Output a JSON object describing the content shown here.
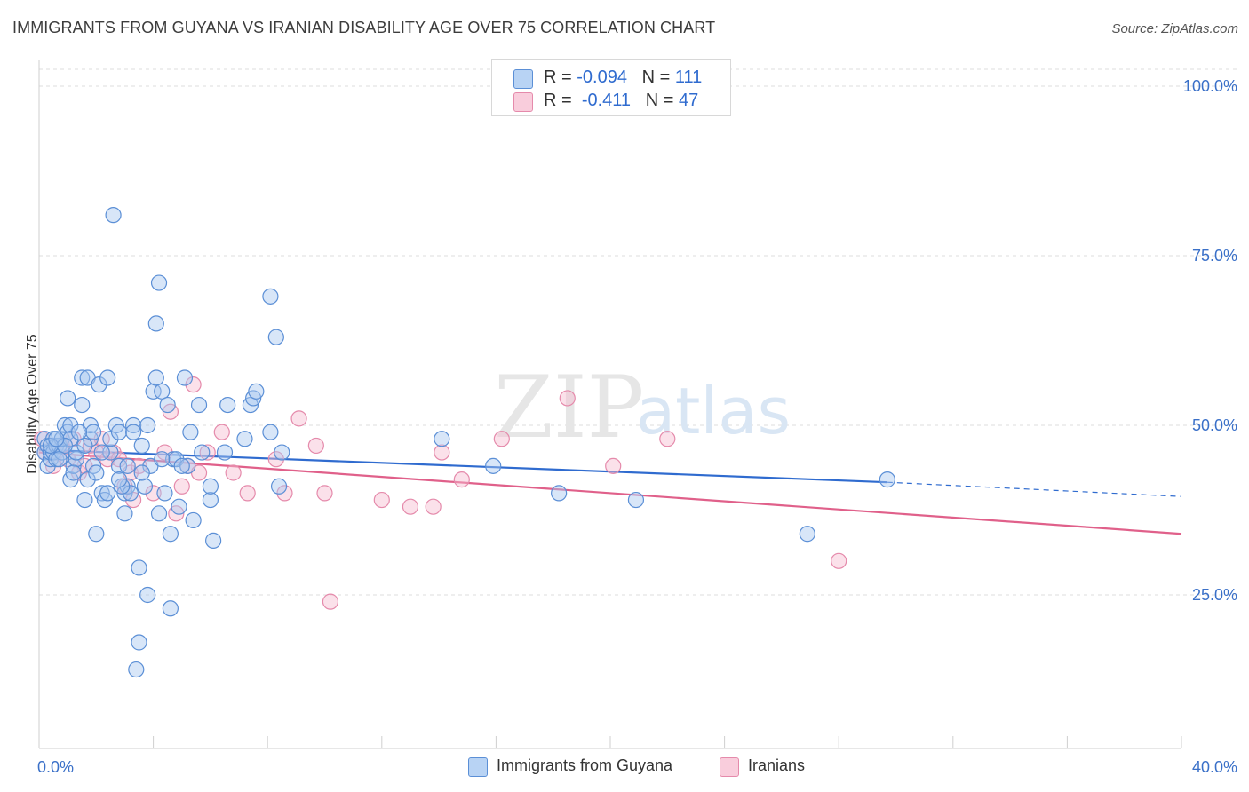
{
  "title": "IMMIGRANTS FROM GUYANA VS IRANIAN DISABILITY AGE OVER 75 CORRELATION CHART",
  "source": "Source: ZipAtlas.com",
  "watermark": {
    "zip": "ZIP",
    "atlas": "atlas"
  },
  "stats": {
    "guyana": {
      "r_label": "R =",
      "r_value": "-0.094",
      "n_label": "N =",
      "n_value": "111"
    },
    "iranians": {
      "r_label": "R =",
      "r_value": "-0.411",
      "n_label": "N =",
      "n_value": "47"
    }
  },
  "colors": {
    "guyana_fill": "#a8c8f0",
    "guyana_stroke": "#5b8fd6",
    "guyana_line": "#2f6bcf",
    "iranian_fill": "#f6bcd0",
    "iranian_stroke": "#e58aab",
    "iranian_line": "#e0608a",
    "tick_label": "#3a70c8",
    "grid": "#dcdcdc"
  },
  "chart_data": {
    "type": "scatter",
    "title": "IMMIGRANTS FROM GUYANA VS IRANIAN DISABILITY AGE OVER 75 CORRELATION CHART",
    "xlabel": "",
    "ylabel": "Disability Age Over 75",
    "xlim": [
      0,
      40
    ],
    "ylim": [
      0,
      105
    ],
    "x_tick_labels": [
      {
        "value": 0,
        "label": "0.0%"
      },
      {
        "value": 40,
        "label": "40.0%"
      }
    ],
    "y_tick_labels": [
      {
        "value": 25,
        "label": "25.0%"
      },
      {
        "value": 50,
        "label": "50.0%"
      },
      {
        "value": 75,
        "label": "75.0%"
      },
      {
        "value": 100,
        "label": "100.0%"
      }
    ],
    "legend_position": "bottom",
    "series": [
      {
        "name": "Immigrants from Guyana",
        "points": [
          [
            0.2,
            48
          ],
          [
            0.2,
            46
          ],
          [
            0.3,
            44
          ],
          [
            0.3,
            47
          ],
          [
            0.4,
            45
          ],
          [
            0.4,
            46
          ],
          [
            0.5,
            48
          ],
          [
            0.5,
            46
          ],
          [
            0.6,
            47
          ],
          [
            0.6,
            45
          ],
          [
            0.7,
            47
          ],
          [
            0.8,
            46
          ],
          [
            0.8,
            48
          ],
          [
            0.9,
            50
          ],
          [
            1.0,
            54
          ],
          [
            1.0,
            49
          ],
          [
            1.1,
            50
          ],
          [
            1.1,
            48
          ],
          [
            1.1,
            42
          ],
          [
            1.2,
            44
          ],
          [
            1.3,
            45
          ],
          [
            1.3,
            46
          ],
          [
            1.5,
            53
          ],
          [
            1.5,
            57
          ],
          [
            1.6,
            39
          ],
          [
            1.7,
            42
          ],
          [
            1.7,
            57
          ],
          [
            1.8,
            48
          ],
          [
            1.8,
            50
          ],
          [
            1.9,
            44
          ],
          [
            1.9,
            49
          ],
          [
            2.0,
            34
          ],
          [
            2.0,
            43
          ],
          [
            2.1,
            56
          ],
          [
            2.2,
            40
          ],
          [
            2.3,
            39
          ],
          [
            2.4,
            57
          ],
          [
            2.4,
            40
          ],
          [
            2.5,
            46
          ],
          [
            2.5,
            48
          ],
          [
            2.6,
            81
          ],
          [
            2.7,
            50
          ],
          [
            2.8,
            49
          ],
          [
            2.8,
            44
          ],
          [
            3.0,
            37
          ],
          [
            3.0,
            40
          ],
          [
            3.1,
            44
          ],
          [
            3.1,
            41
          ],
          [
            3.2,
            40
          ],
          [
            3.3,
            50
          ],
          [
            3.4,
            14
          ],
          [
            3.5,
            18
          ],
          [
            3.5,
            29
          ],
          [
            3.6,
            47
          ],
          [
            3.7,
            41
          ],
          [
            3.8,
            50
          ],
          [
            3.8,
            25
          ],
          [
            3.9,
            44
          ],
          [
            4.0,
            55
          ],
          [
            4.1,
            65
          ],
          [
            4.1,
            57
          ],
          [
            4.2,
            71
          ],
          [
            4.2,
            37
          ],
          [
            4.3,
            55
          ],
          [
            4.4,
            40
          ],
          [
            4.5,
            53
          ],
          [
            4.6,
            34
          ],
          [
            4.6,
            23
          ],
          [
            4.7,
            45
          ],
          [
            4.8,
            45
          ],
          [
            4.9,
            38
          ],
          [
            5.1,
            57
          ],
          [
            5.2,
            44
          ],
          [
            5.3,
            49
          ],
          [
            5.4,
            36
          ],
          [
            5.6,
            53
          ],
          [
            5.7,
            46
          ],
          [
            6.0,
            39
          ],
          [
            6.0,
            41
          ],
          [
            6.1,
            33
          ],
          [
            6.6,
            53
          ],
          [
            7.2,
            48
          ],
          [
            7.4,
            53
          ],
          [
            7.5,
            54
          ],
          [
            7.6,
            55
          ],
          [
            8.1,
            69
          ],
          [
            8.1,
            49
          ],
          [
            8.3,
            63
          ],
          [
            8.4,
            41
          ],
          [
            8.5,
            46
          ],
          [
            14.1,
            48
          ],
          [
            15.9,
            44
          ],
          [
            18.2,
            40
          ],
          [
            20.9,
            39
          ],
          [
            26.9,
            34
          ],
          [
            29.7,
            42
          ],
          [
            2.9,
            41
          ],
          [
            1.4,
            49
          ],
          [
            0.9,
            47
          ],
          [
            0.7,
            45
          ],
          [
            1.2,
            43
          ],
          [
            3.6,
            43
          ],
          [
            2.2,
            46
          ],
          [
            4.3,
            45
          ],
          [
            5.0,
            44
          ],
          [
            0.4,
            47
          ],
          [
            1.6,
            47
          ],
          [
            2.8,
            42
          ],
          [
            6.5,
            46
          ],
          [
            3.3,
            49
          ],
          [
            0.6,
            48
          ]
        ],
        "trend": {
          "x1": 0,
          "y1": 46.4,
          "x2": 29.7,
          "y2": 41.6,
          "dashed_to_x": 40,
          "dashed_to_y": 39.5
        }
      },
      {
        "name": "Iranians",
        "points": [
          [
            0.1,
            48
          ],
          [
            0.2,
            46
          ],
          [
            0.5,
            44
          ],
          [
            0.6,
            46
          ],
          [
            0.8,
            47
          ],
          [
            1.0,
            45
          ],
          [
            1.2,
            48
          ],
          [
            1.4,
            43
          ],
          [
            1.6,
            44
          ],
          [
            1.8,
            47
          ],
          [
            2.0,
            46
          ],
          [
            2.2,
            48
          ],
          [
            2.4,
            45
          ],
          [
            2.6,
            46
          ],
          [
            2.8,
            45
          ],
          [
            3.0,
            41
          ],
          [
            3.2,
            43
          ],
          [
            3.3,
            39
          ],
          [
            3.5,
            44
          ],
          [
            4.0,
            40
          ],
          [
            4.4,
            46
          ],
          [
            4.6,
            52
          ],
          [
            4.8,
            37
          ],
          [
            5.0,
            41
          ],
          [
            5.2,
            44
          ],
          [
            5.4,
            56
          ],
          [
            5.6,
            43
          ],
          [
            5.9,
            46
          ],
          [
            6.4,
            49
          ],
          [
            6.8,
            43
          ],
          [
            7.3,
            40
          ],
          [
            8.3,
            45
          ],
          [
            8.6,
            40
          ],
          [
            9.1,
            51
          ],
          [
            9.7,
            47
          ],
          [
            10.0,
            40
          ],
          [
            10.2,
            24
          ],
          [
            12.0,
            39
          ],
          [
            13.0,
            38
          ],
          [
            13.8,
            38
          ],
          [
            14.1,
            46
          ],
          [
            14.8,
            42
          ],
          [
            16.2,
            48
          ],
          [
            18.5,
            54
          ],
          [
            20.1,
            44
          ],
          [
            22.0,
            48
          ],
          [
            28.0,
            30
          ]
        ],
        "trend": {
          "x1": 0,
          "y1": 46.0,
          "x2": 40,
          "y2": 34.0
        }
      }
    ]
  },
  "legend": {
    "guyana": "Immigrants from Guyana",
    "iranians": "Iranians"
  }
}
